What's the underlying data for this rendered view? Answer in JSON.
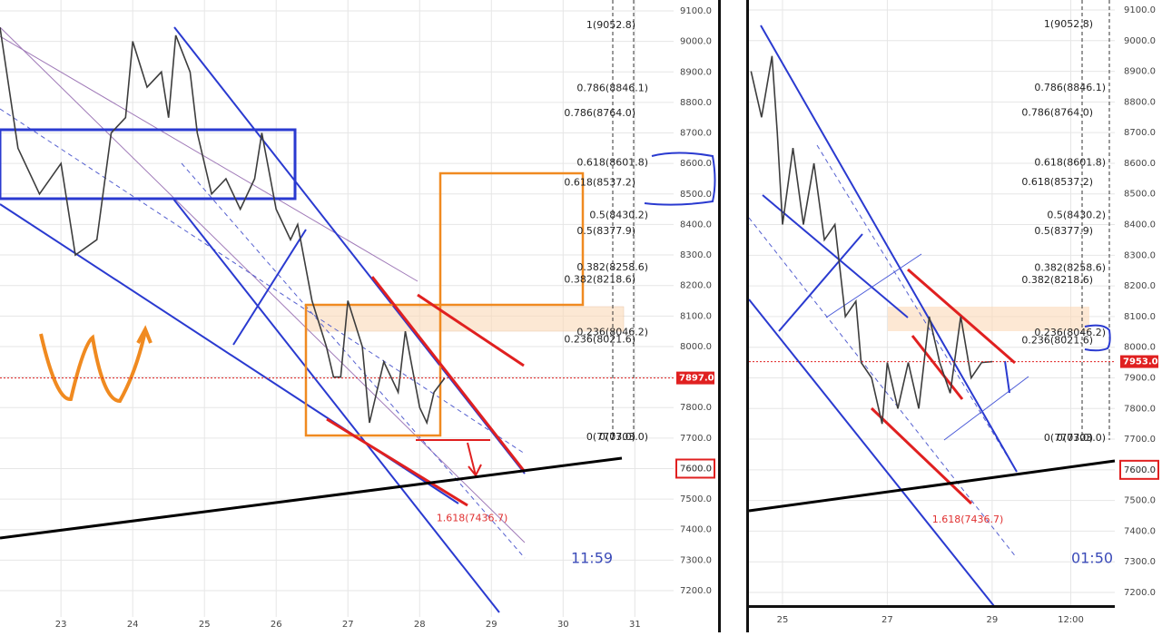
{
  "chart_data": [
    {
      "type": "line",
      "color": "#3d3d3d",
      "x": [
        22.15,
        22.4,
        22.7,
        23.0,
        23.2,
        23.5,
        23.7,
        23.9,
        24.0,
        24.2,
        24.4,
        24.5,
        24.6,
        24.8,
        24.9,
        25.1,
        25.3,
        25.5,
        25.7,
        25.8,
        26.0,
        26.2,
        26.3,
        26.5,
        26.7,
        26.8,
        26.9,
        27.0,
        27.2,
        27.3,
        27.5,
        27.7,
        27.8,
        28.0,
        28.1,
        28.2,
        28.35
      ],
      "values": [
        9046,
        8650,
        8500,
        8600,
        8300,
        8350,
        8700,
        8750,
        9000,
        8850,
        8900,
        8750,
        9020,
        8900,
        8700,
        8500,
        8550,
        8450,
        8550,
        8700,
        8450,
        8350,
        8400,
        8150,
        8000,
        7900,
        7900,
        8150,
        8000,
        7750,
        7950,
        7850,
        8050,
        7800,
        7750,
        7850,
        7897
      ],
      "xlim": [
        22.15,
        31.54
      ],
      "ylim": [
        7113.8,
        9135.7
      ],
      "xticks": [
        23,
        24,
        25,
        26,
        27,
        28,
        29,
        30,
        31
      ],
      "yticks": [
        {
          "value": 9100,
          "label": "9100.0"
        },
        {
          "value": 9000,
          "label": "9000.0"
        },
        {
          "value": 8900,
          "label": "8900.0"
        },
        {
          "value": 8800,
          "label": "8800.0"
        },
        {
          "value": 8700,
          "label": "8700.0"
        },
        {
          "value": 8600,
          "label": "8600.0"
        },
        {
          "value": 8500,
          "label": "8500.0"
        },
        {
          "value": 8400,
          "label": "8400.0"
        },
        {
          "value": 8300,
          "label": "8300.0"
        },
        {
          "value": 8200,
          "label": "8200.0"
        },
        {
          "value": 8100,
          "label": "8100.0"
        },
        {
          "value": 8000,
          "label": "8000.0"
        },
        {
          "value": 7900,
          "label": "7900.0"
        },
        {
          "value": 7800,
          "label": "7800.0"
        },
        {
          "value": 7700,
          "label": "7700.0"
        },
        {
          "value": 7600,
          "label": "7600.0"
        },
        {
          "value": 7500,
          "label": "7500.0"
        },
        {
          "value": 7400,
          "label": "7400.0"
        },
        {
          "value": 7300,
          "label": "7300.0"
        },
        {
          "value": 7200,
          "label": "7200.0"
        }
      ],
      "grid": true,
      "fib_levels": [
        {
          "label": "1(9052.8)",
          "value": 9052.8
        },
        {
          "label": "0.786(8846.1)",
          "value": 8846.1
        },
        {
          "label": "0.786(8764.0)",
          "value": 8764.0
        },
        {
          "label": "0.618(8601.8)",
          "value": 8601.8
        },
        {
          "label": "0.618(8537.2)",
          "value": 8537.2
        },
        {
          "label": "0.5(8430.2)",
          "value": 8430.2
        },
        {
          "label": "0.5(8377.9)",
          "value": 8377.9
        },
        {
          "label": "0.382(8258.6)",
          "value": 8258.6
        },
        {
          "label": "0.382(8218.6)",
          "value": 8218.6
        },
        {
          "label": "0.236(8046.2)",
          "value": 8046.2
        },
        {
          "label": "0.236(8021.6)",
          "value": 8021.6
        },
        {
          "label": "0(7703.0)",
          "value": 7703.0
        },
        {
          "label": "0(7703.0)",
          "value": 7703.0
        }
      ],
      "extension": {
        "label": "1.618(7436.7)",
        "value": 7436.7
      },
      "last_price": {
        "value": 7897.0,
        "label": "7897.0"
      },
      "marker": {
        "value": 7600,
        "label": "7600.0"
      },
      "time_label": "11:59"
    },
    {
      "type": "line",
      "color": "#3d3d3d",
      "x": [
        24.4,
        24.6,
        24.8,
        24.9,
        25.0,
        25.2,
        25.4,
        25.6,
        25.8,
        26.0,
        26.2,
        26.4,
        26.5,
        26.7,
        26.9,
        27.0,
        27.2,
        27.4,
        27.6,
        27.8,
        28.0,
        28.2,
        28.4,
        28.6,
        28.8,
        29.0
      ],
      "values": [
        8900,
        8750,
        8950,
        8700,
        8400,
        8650,
        8400,
        8600,
        8350,
        8400,
        8100,
        8150,
        7950,
        7900,
        7750,
        7950,
        7800,
        7950,
        7800,
        8100,
        7950,
        7850,
        8100,
        7900,
        7950,
        7953
      ],
      "xlim": [
        24.36,
        31.34
      ],
      "ylim": [
        7155.6,
        9132.6
      ],
      "xticks": [
        25,
        27,
        29,
        {
          "value": 30.5,
          "label": "12:00"
        }
      ],
      "yticks": [
        {
          "value": 9100,
          "label": "9100.0"
        },
        {
          "value": 9000,
          "label": "9000.0"
        },
        {
          "value": 8900,
          "label": "8900.0"
        },
        {
          "value": 8800,
          "label": "8800.0"
        },
        {
          "value": 8700,
          "label": "8700.0"
        },
        {
          "value": 8600,
          "label": "8600.0"
        },
        {
          "value": 8500,
          "label": "8500.0"
        },
        {
          "value": 8400,
          "label": "8400.0"
        },
        {
          "value": 8300,
          "label": "8300.0"
        },
        {
          "value": 8200,
          "label": "8200.0"
        },
        {
          "value": 8100,
          "label": "8100.0"
        },
        {
          "value": 8000,
          "label": "8000.0"
        },
        {
          "value": 7900,
          "label": "7900.0"
        },
        {
          "value": 7800,
          "label": "7800.0"
        },
        {
          "value": 7700,
          "label": "7700.0"
        },
        {
          "value": 7600,
          "label": "7600.0"
        },
        {
          "value": 7500,
          "label": "7500.0"
        },
        {
          "value": 7400,
          "label": "7400.0"
        },
        {
          "value": 7300,
          "label": "7300.0"
        },
        {
          "value": 7200,
          "label": "7200.0"
        }
      ],
      "grid": true,
      "fib_levels": [
        {
          "label": "1(9052.8)",
          "value": 9052.8
        },
        {
          "label": "0.786(8846.1)",
          "value": 8846.1
        },
        {
          "label": "0.786(8764.0)",
          "value": 8764.0
        },
        {
          "label": "0.618(8601.8)",
          "value": 8601.8
        },
        {
          "label": "0.618(8537.2)",
          "value": 8537.2
        },
        {
          "label": "0.5(8430.2)",
          "value": 8430.2
        },
        {
          "label": "0.5(8377.9)",
          "value": 8377.9
        },
        {
          "label": "0.382(8258.6)",
          "value": 8258.6
        },
        {
          "label": "0.382(8218.6)",
          "value": 8218.6
        },
        {
          "label": "0.236(8046.2)",
          "value": 8046.2
        },
        {
          "label": "0.236(8021.6)",
          "value": 8021.6
        },
        {
          "label": "0(7703.0)",
          "value": 7703.0
        },
        {
          "label": "0(7703.0)",
          "value": 7703.0
        }
      ],
      "extension": {
        "label": "1.618(7436.7)",
        "value": 7436.7
      },
      "last_price": {
        "value": 7953.0,
        "label": "7953.0"
      },
      "marker": {
        "value": 7600,
        "label": "7600.0"
      },
      "time_label": "01:50"
    }
  ]
}
